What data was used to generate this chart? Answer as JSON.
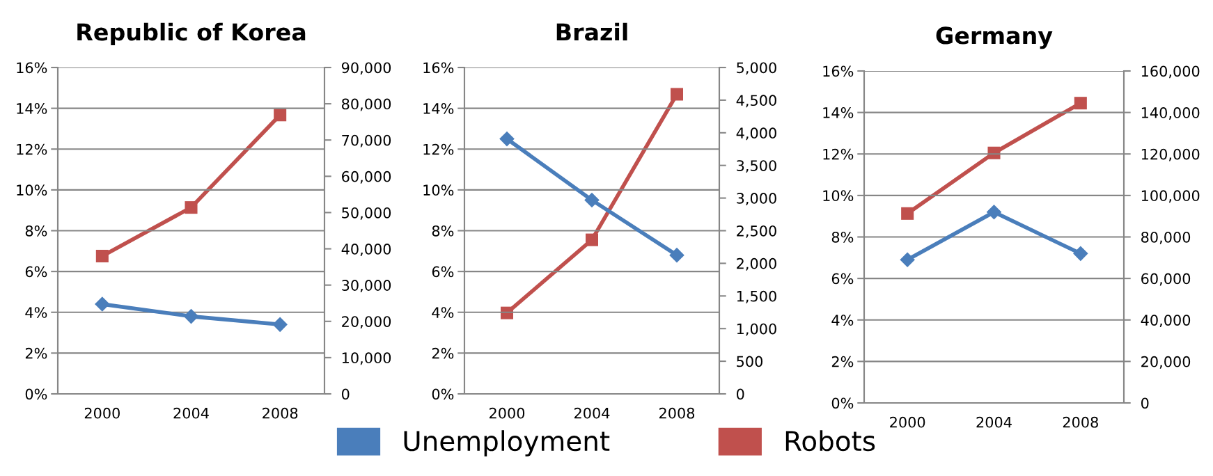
{
  "chart_data": [
    {
      "type": "line",
      "title": "Republic of Korea",
      "categories": [
        "2000",
        "2004",
        "2008"
      ],
      "series": [
        {
          "name": "Unemployment",
          "color": "#4a7ebb",
          "marker": "diamond",
          "values": [
            4.4,
            3.8,
            3.4
          ]
        },
        {
          "name": "Robots",
          "color": "#c0504d",
          "marker": "square",
          "axis": "y2",
          "values": [
            38000,
            51400,
            76900
          ]
        }
      ],
      "ylim": [
        0,
        16
      ],
      "yticks": [
        {
          "value": 0,
          "label": "0%"
        },
        {
          "value": 2,
          "label": "2%"
        },
        {
          "value": 4,
          "label": "4%"
        },
        {
          "value": 6,
          "label": "6%"
        },
        {
          "value": 8,
          "label": "8%"
        },
        {
          "value": 10,
          "label": "10%"
        },
        {
          "value": 12,
          "label": "12%"
        },
        {
          "value": 14,
          "label": "14%"
        },
        {
          "value": 16,
          "label": "16%"
        }
      ],
      "y2lim": [
        0,
        90000
      ],
      "y2ticks": [
        0,
        {
          "value": 10000,
          "label": "10,000"
        },
        {
          "value": 20000,
          "label": "20,000"
        },
        {
          "value": 30000,
          "label": "30,000"
        },
        {
          "value": 40000,
          "label": "40,000"
        },
        {
          "value": 50000,
          "label": "50,000"
        },
        {
          "value": 60000,
          "label": "60,000"
        },
        {
          "value": 70000,
          "label": "70,000"
        },
        {
          "value": 80000,
          "label": "80,000"
        },
        {
          "value": 90000,
          "label": "90,000"
        }
      ],
      "grid": "y",
      "legend": "bottom"
    },
    {
      "type": "line",
      "title": "Brazil",
      "categories": [
        "2000",
        "2004",
        "2008"
      ],
      "series": [
        {
          "name": "Unemployment",
          "color": "#4a7ebb",
          "marker": "diamond",
          "values": [
            12.5,
            9.5,
            6.8
          ]
        },
        {
          "name": "Robots",
          "color": "#c0504d",
          "marker": "square",
          "axis": "y2",
          "values": [
            1240,
            2360,
            4590
          ]
        }
      ],
      "ylim": [
        0,
        16
      ],
      "yticks": [
        {
          "value": 0,
          "label": "0%"
        },
        {
          "value": 2,
          "label": "2%"
        },
        {
          "value": 4,
          "label": "4%"
        },
        {
          "value": 6,
          "label": "6%"
        },
        {
          "value": 8,
          "label": "8%"
        },
        {
          "value": 10,
          "label": "10%"
        },
        {
          "value": 12,
          "label": "12%"
        },
        {
          "value": 14,
          "label": "14%"
        },
        {
          "value": 16,
          "label": "16%"
        }
      ],
      "y2lim": [
        0,
        5000
      ],
      "y2ticks": [
        0,
        500,
        {
          "value": 1000,
          "label": "1,000"
        },
        {
          "value": 1500,
          "label": "1,500"
        },
        {
          "value": 2000,
          "label": "2,000"
        },
        {
          "value": 2500,
          "label": "2,500"
        },
        {
          "value": 3000,
          "label": "3,000"
        },
        {
          "value": 3500,
          "label": "3,500"
        },
        {
          "value": 4000,
          "label": "4,000"
        },
        {
          "value": 4500,
          "label": "4,500"
        },
        {
          "value": 5000,
          "label": "5,000"
        }
      ],
      "grid": "y",
      "legend": "bottom"
    },
    {
      "type": "line",
      "title": "Germany",
      "categories": [
        "2000",
        "2004",
        "2008"
      ],
      "series": [
        {
          "name": "Unemployment",
          "color": "#4a7ebb",
          "marker": "diamond",
          "values": [
            6.9,
            9.2,
            7.2
          ]
        },
        {
          "name": "Robots",
          "color": "#c0504d",
          "marker": "square",
          "axis": "y2",
          "values": [
            91300,
            120500,
            144500
          ]
        }
      ],
      "ylim": [
        0,
        16
      ],
      "yticks": [
        {
          "value": 0,
          "label": "0%"
        },
        {
          "value": 2,
          "label": "2%"
        },
        {
          "value": 4,
          "label": "4%"
        },
        {
          "value": 6,
          "label": "6%"
        },
        {
          "value": 8,
          "label": "8%"
        },
        {
          "value": 10,
          "label": "10%"
        },
        {
          "value": 12,
          "label": "12%"
        },
        {
          "value": 14,
          "label": "14%"
        },
        {
          "value": 16,
          "label": "16%"
        }
      ],
      "y2lim": [
        0,
        160000
      ],
      "y2ticks": [
        0,
        {
          "value": 20000,
          "label": "20,000"
        },
        {
          "value": 40000,
          "label": "40,000"
        },
        {
          "value": 60000,
          "label": "60,000"
        },
        {
          "value": 80000,
          "label": "80,000"
        },
        {
          "value": 100000,
          "label": "100,000"
        },
        {
          "value": 120000,
          "label": "120,000"
        },
        {
          "value": 140000,
          "label": "140,000"
        },
        {
          "value": 160000,
          "label": "160,000"
        }
      ],
      "grid": "y",
      "legend": "bottom"
    }
  ]
}
